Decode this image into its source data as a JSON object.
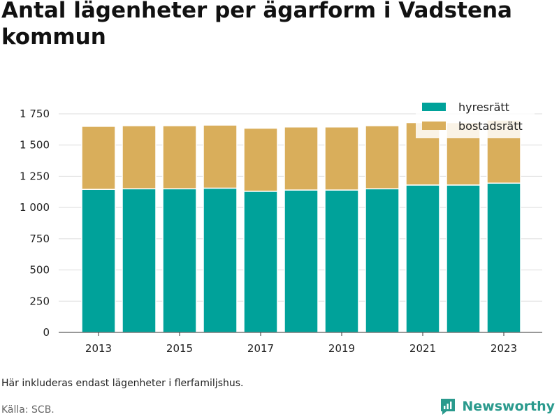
{
  "title": "Antal lägenheter per ägarform i Vadstena kommun",
  "note": "Här inkluderas endast lägenheter i flerfamiljshus.",
  "source": "Källa: SCB.",
  "brand": "Newsworthy",
  "colors": {
    "hyresratt": "#00a29a",
    "bostadsratt": "#d9ae5b",
    "grid": "#dddddd",
    "brand": "#2a9a8d"
  },
  "chart_data": {
    "type": "bar",
    "stacked": true,
    "categories": [
      "2013",
      "2014",
      "2015",
      "2016",
      "2017",
      "2018",
      "2019",
      "2020",
      "2021",
      "2022",
      "2023"
    ],
    "x_tick_labels": [
      "2013",
      "2015",
      "2017",
      "2019",
      "2021",
      "2023"
    ],
    "y_tick_labels": [
      "0",
      "250",
      "500",
      "750",
      "1 000",
      "1 250",
      "1 500",
      "1 750"
    ],
    "y_ticks": [
      0,
      250,
      500,
      750,
      1000,
      1250,
      1500,
      1750
    ],
    "ylim": [
      0,
      1750
    ],
    "grid": true,
    "legend_position": "top-right",
    "series": [
      {
        "name": "hyresrätt",
        "color": "#00a29a",
        "values": [
          1145,
          1150,
          1150,
          1155,
          1130,
          1140,
          1140,
          1150,
          1180,
          1180,
          1195
        ]
      },
      {
        "name": "bostadsrätt",
        "color": "#d9ae5b",
        "values": [
          505,
          505,
          505,
          505,
          505,
          505,
          505,
          505,
          500,
          500,
          505
        ]
      }
    ]
  }
}
